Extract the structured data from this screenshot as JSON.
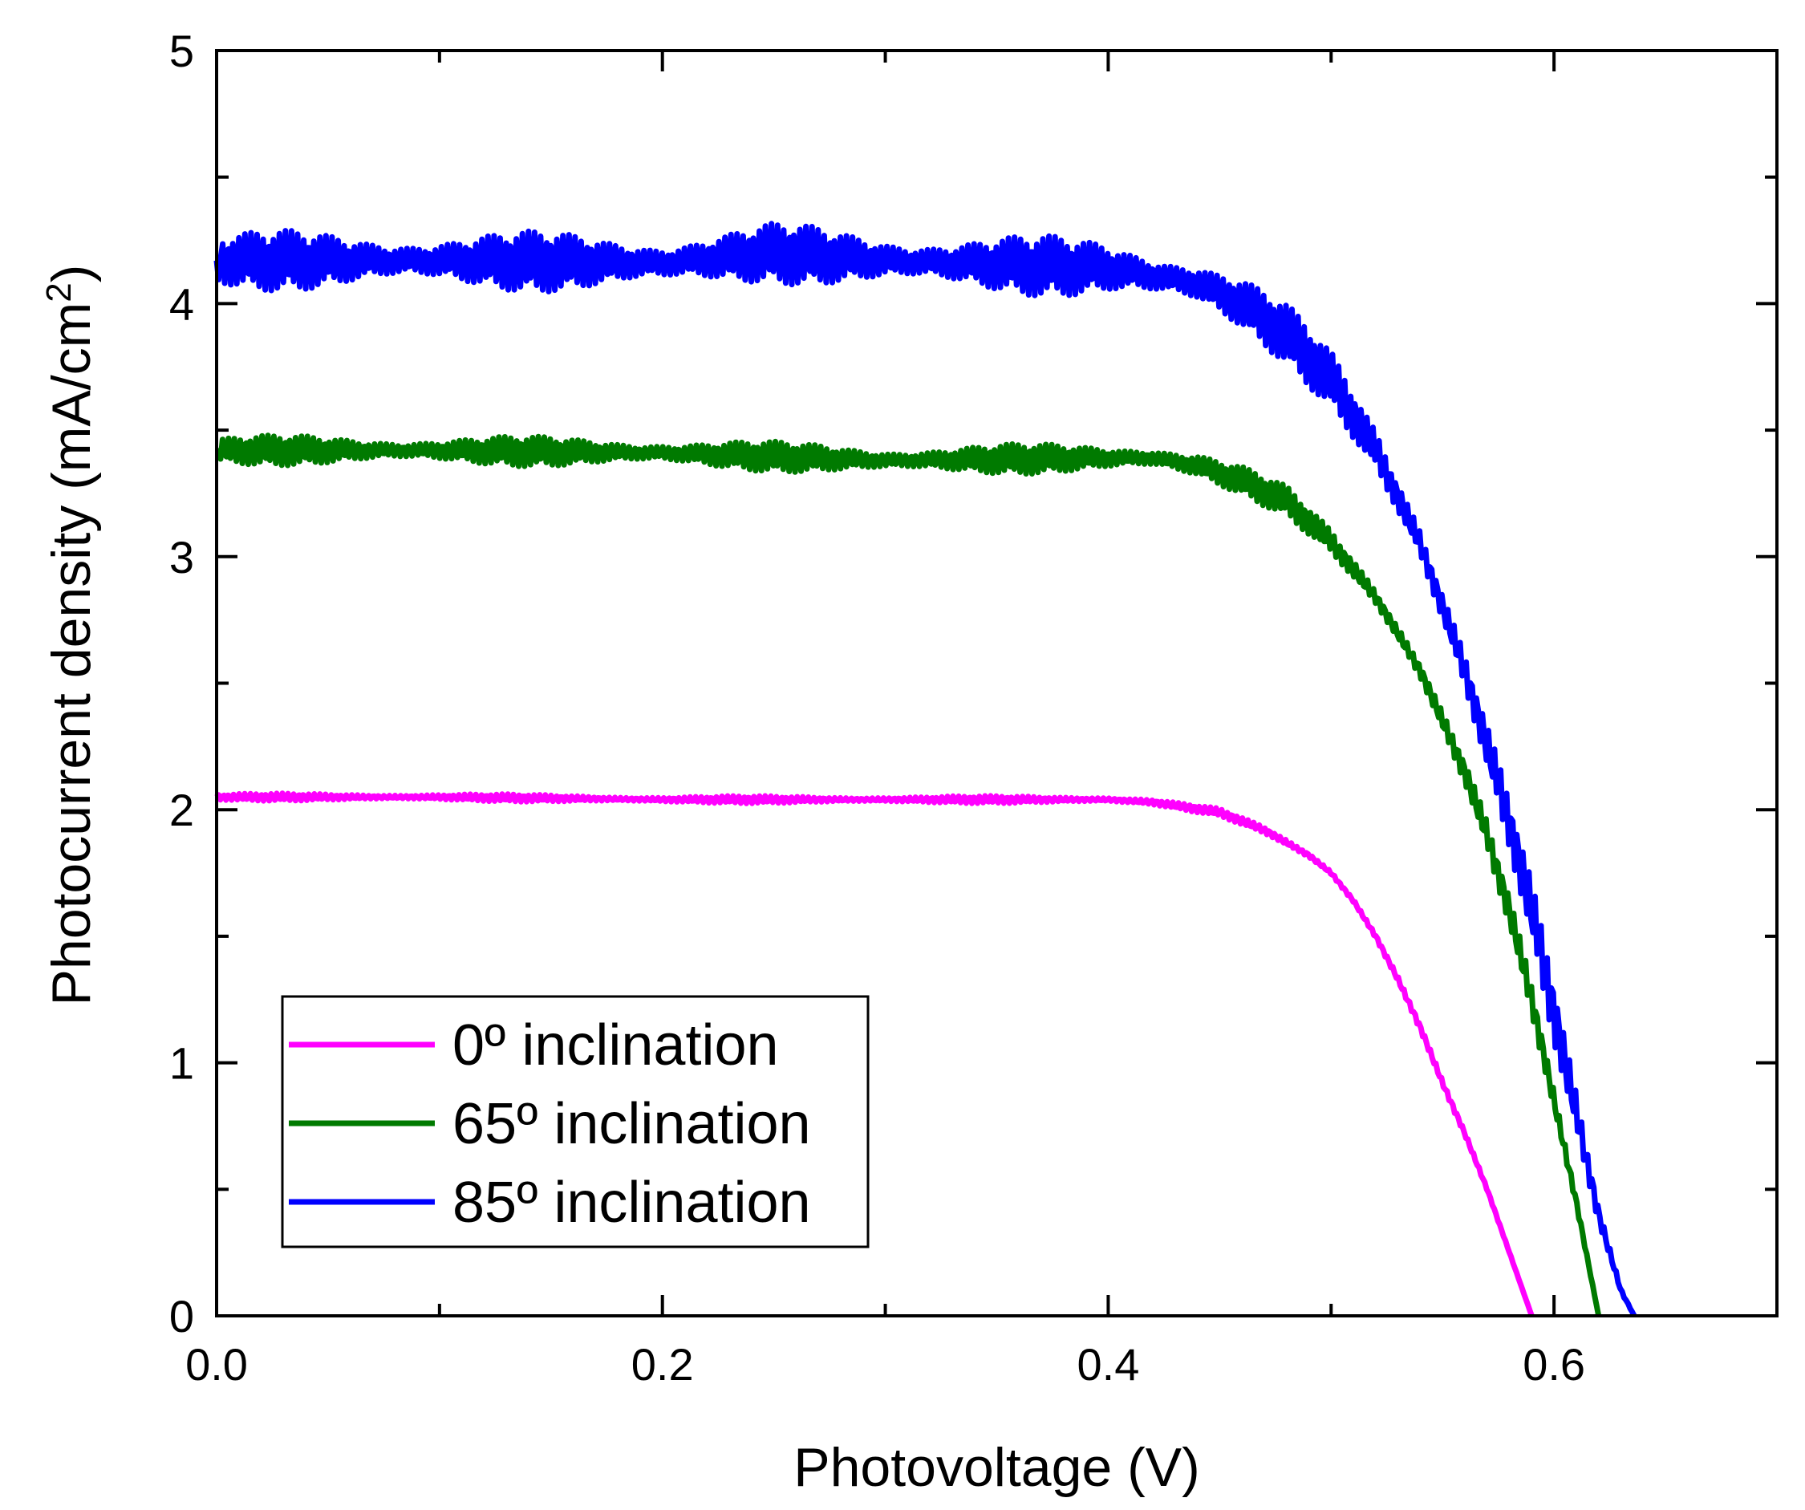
{
  "chart_data": {
    "type": "line",
    "title": "",
    "xlabel": "Photovoltage (V)",
    "ylabel": "Photocurrent density (mA/cm",
    "ylabel_sup": "2",
    "ylabel_end": ")",
    "xlim": [
      0.0,
      0.7
    ],
    "ylim": [
      0,
      5
    ],
    "x_ticks": [
      0.0,
      0.2,
      0.4,
      0.6
    ],
    "x_tick_labels": [
      "0.0",
      "0.2",
      "0.4",
      "0.6"
    ],
    "x_minor_ticks": [
      0.1,
      0.3,
      0.5
    ],
    "y_ticks": [
      0,
      1,
      2,
      3,
      4,
      5
    ],
    "y_tick_labels": [
      "0",
      "1",
      "2",
      "3",
      "4",
      "5"
    ],
    "y_minor_ticks": [
      0.5,
      1.5,
      2.5,
      3.5,
      4.5
    ],
    "grid": false,
    "legend_position": "bottom-left",
    "series": [
      {
        "name": "0º inclination",
        "color": "#ff00ff",
        "noise": 0.015,
        "x": [
          0.0,
          0.1,
          0.2,
          0.3,
          0.4,
          0.42,
          0.45,
          0.47,
          0.49,
          0.5,
          0.51,
          0.52,
          0.53,
          0.54,
          0.55,
          0.56,
          0.57,
          0.58,
          0.59
        ],
        "y": [
          2.05,
          2.05,
          2.04,
          2.04,
          2.04,
          2.03,
          1.99,
          1.92,
          1.82,
          1.75,
          1.64,
          1.5,
          1.33,
          1.14,
          0.92,
          0.72,
          0.5,
          0.25,
          0.0
        ]
      },
      {
        "name": "65º inclination",
        "color": "#007a00",
        "noise": 0.06,
        "x": [
          0.0,
          0.1,
          0.2,
          0.3,
          0.4,
          0.42,
          0.44,
          0.46,
          0.48,
          0.5,
          0.52,
          0.54,
          0.56,
          0.57,
          0.58,
          0.59,
          0.6,
          0.61,
          0.62
        ],
        "y": [
          3.42,
          3.42,
          3.41,
          3.38,
          3.39,
          3.39,
          3.36,
          3.3,
          3.22,
          3.06,
          2.84,
          2.55,
          2.15,
          1.9,
          1.6,
          1.25,
          0.85,
          0.45,
          0.0
        ]
      },
      {
        "name": "85º inclination",
        "color": "#0000ff",
        "noise": 0.12,
        "x": [
          0.0,
          0.1,
          0.2,
          0.25,
          0.3,
          0.4,
          0.44,
          0.46,
          0.48,
          0.5,
          0.52,
          0.54,
          0.56,
          0.58,
          0.59,
          0.6,
          0.61,
          0.62,
          0.63,
          0.636
        ],
        "y": [
          4.17,
          4.17,
          4.16,
          4.2,
          4.17,
          4.14,
          4.08,
          4.0,
          3.88,
          3.7,
          3.42,
          3.05,
          2.55,
          1.95,
          1.6,
          1.2,
          0.8,
          0.4,
          0.1,
          0.0
        ]
      }
    ]
  }
}
